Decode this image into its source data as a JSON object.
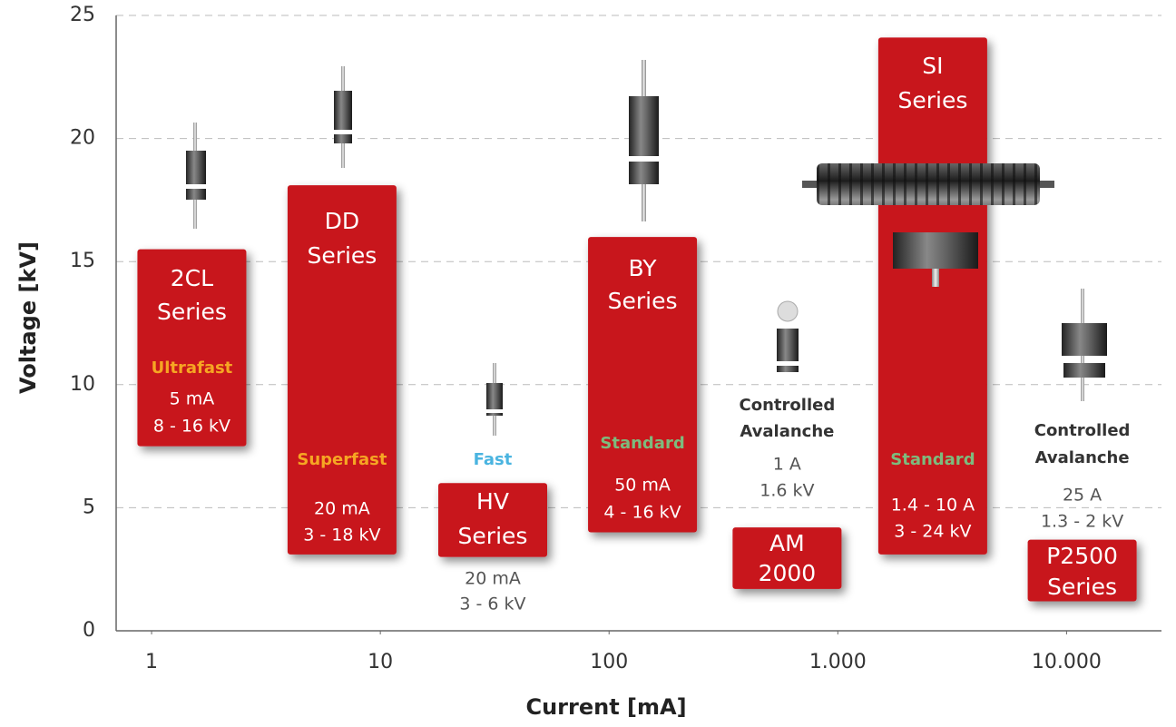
{
  "chart_data": {
    "type": "range-box",
    "x_label": "Current [mA]",
    "y_label": "Voltage [kV]",
    "xscale": "log",
    "xlim": [
      0.7,
      26000
    ],
    "xticks": [
      1,
      10,
      100,
      {
        "value": 1000,
        "label": "1.000"
      },
      {
        "value": 10000,
        "label": "10.000"
      }
    ],
    "ylim": [
      0,
      25
    ],
    "yticks": [
      0,
      5,
      10,
      15,
      20,
      25
    ],
    "grid": true,
    "color": "#c8161e",
    "items": [
      {
        "name": [
          "2CL",
          "Series"
        ],
        "speed": [
          "Ultrafast"
        ],
        "speed_color": "#f6a623",
        "specs": [
          "5 mA",
          "8 - 16 kV"
        ],
        "x": 1.5,
        "range": [
          7.5,
          15.5
        ]
      },
      {
        "name": [
          "DD",
          "Series"
        ],
        "speed": [
          "Superfast"
        ],
        "speed_color": "#f6a623",
        "specs": [
          "20 mA",
          "3 - 18 kV"
        ],
        "x": 6.8,
        "range": [
          3.1,
          18.1
        ]
      },
      {
        "name": [
          "HV",
          "Series"
        ],
        "speed": [
          "Fast"
        ],
        "speed_color": "#4ab4e0",
        "specs": [
          "20 mA",
          "3 - 6 kV"
        ],
        "x": 31,
        "range": [
          3.0,
          6.0
        ]
      },
      {
        "name": [
          "BY",
          "Series"
        ],
        "speed": [
          "Standard"
        ],
        "speed_color": "#7dbb7d",
        "specs": [
          "50 mA",
          "4 - 16 kV"
        ],
        "x": 140,
        "range": [
          4.0,
          16.0
        ]
      },
      {
        "name": [
          "AM",
          "2000"
        ],
        "speed": [
          "Controlled",
          "Avalanche"
        ],
        "speed_color": "#333333",
        "specs": [
          "1 A",
          "1.6 kV"
        ],
        "x": 600,
        "range": [
          1.7,
          4.2
        ]
      },
      {
        "name": [
          "SI",
          "Series"
        ],
        "speed": [
          "Standard"
        ],
        "speed_color": "#7dbb7d",
        "specs": [
          "1.4 - 10 A",
          "3 - 24 kV"
        ],
        "x": 2600,
        "range": [
          3.1,
          24.1
        ]
      },
      {
        "name": [
          "P2500",
          "Series"
        ],
        "speed": [
          "Controlled",
          "Avalanche"
        ],
        "speed_color": "#333333",
        "specs": [
          "25 A",
          "1.3 - 2 kV"
        ],
        "x": 11700,
        "range": [
          1.2,
          3.7
        ]
      }
    ]
  }
}
